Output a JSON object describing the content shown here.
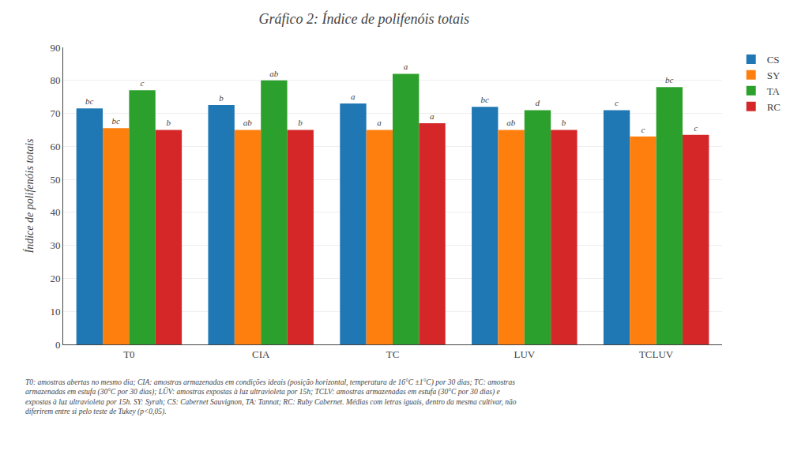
{
  "chart_data": {
    "type": "bar",
    "title": "Gráfico 2: Índice de polifenóis totais",
    "ylabel": "Índice de polifenóis totais",
    "categories": [
      "T0",
      "CIA",
      "TC",
      "LUV",
      "TCLUV"
    ],
    "series": [
      {
        "name": "CS",
        "values": [
          71.5,
          72.5,
          73.0,
          72.0,
          71.0
        ],
        "annotations": [
          "bc",
          "b",
          "a",
          "bc",
          "c"
        ]
      },
      {
        "name": "SY",
        "values": [
          65.5,
          65.0,
          65.0,
          65.0,
          63.0
        ],
        "annotations": [
          "bc",
          "ab",
          "a",
          "ab",
          "c"
        ]
      },
      {
        "name": "TA",
        "values": [
          77.0,
          80.0,
          82.0,
          71.0,
          78.0
        ],
        "annotations": [
          "c",
          "ab",
          "a",
          "d",
          "bc"
        ]
      },
      {
        "name": "RC",
        "values": [
          65.0,
          65.0,
          67.0,
          65.0,
          63.5
        ],
        "annotations": [
          "b",
          "b",
          "a",
          "b",
          "c"
        ]
      }
    ],
    "ylim": [
      0,
      90
    ],
    "yticks": [
      0,
      10,
      20,
      30,
      40,
      50,
      60,
      70,
      80,
      90
    ],
    "grid": true,
    "legend": "right",
    "caption": [
      "T0: amostras abertas no mesmo dia; CIA: amostras armazenadas em condições ideais (posição horizontal, temperatura de 16°C ±1°C) por 30 dias; TC: amostras",
      "armazenadas em estufa (30°C por 30 dias); LÜV: amostras expostas à luz ultravioleta por 15h; TCLV: amostras armazenadas em estufa (30°C por 30 dias) e",
      "expostas à luz ultravioleta por 15h. SY: Syrah; CS: Cabernet Sauvignon, TA: Tannat; RC: Ruby Cabernet. Médias com letras iguais, dentro da mesma cultivar, não",
      "diferirem entre si pelo teste de Tukey (p<0,05)."
    ]
  }
}
